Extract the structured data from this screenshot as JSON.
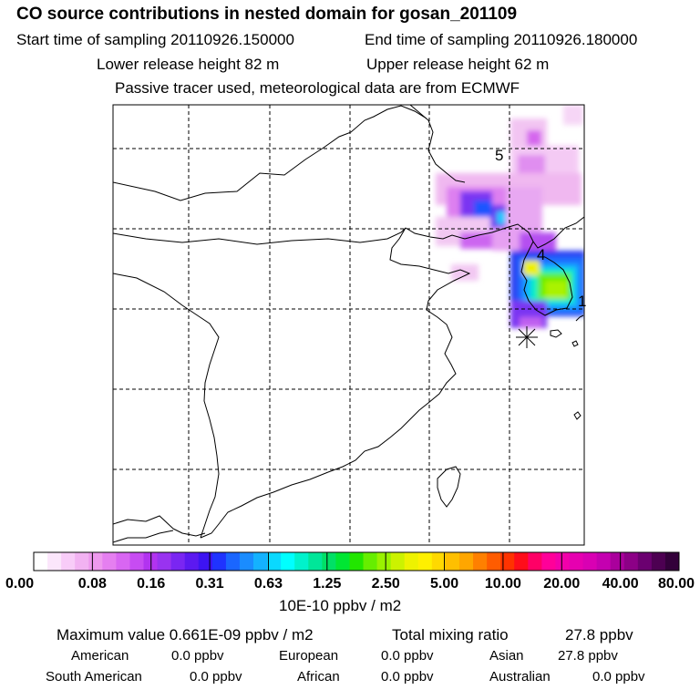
{
  "header": {
    "title": "CO  source contributions in nested domain for gosan_201109",
    "start_time": "Start time of sampling 20110926.150000",
    "end_time": "End time of sampling 20110926.180000",
    "lower_height": "Lower release height   82 m",
    "upper_height": "Upper release height   62 m",
    "tracer_note": "Passive tracer used, meteorological data are from ECMWF"
  },
  "map": {
    "day_labels": [
      "5",
      "4",
      "1"
    ],
    "receptor_symbol": "receptor-star"
  },
  "colorbar": {
    "colors": [
      "#ffffff",
      "#fbe6fb",
      "#f8ccf8",
      "#f2b2f2",
      "#ee99ee",
      "#e57ff0",
      "#d866f2",
      "#c74cf2",
      "#b233f0",
      "#9933f0",
      "#7a26f2",
      "#5c19f0",
      "#3d14f2",
      "#1f33ff",
      "#1a66ff",
      "#1a8cff",
      "#14b2ff",
      "#0ad9ff",
      "#00ffff",
      "#00f2cc",
      "#00e699",
      "#00e066",
      "#00e633",
      "#22e600",
      "#66ee00",
      "#99f200",
      "#ccf200",
      "#eef200",
      "#fff000",
      "#ffd900",
      "#ffbf00",
      "#ffa600",
      "#ff8000",
      "#ff5c00",
      "#ff3300",
      "#ff0d1a",
      "#ff0066",
      "#ff0099",
      "#f200aa",
      "#e600b0",
      "#d900b3",
      "#c400b0",
      "#aa009c",
      "#8c0086",
      "#6b0070",
      "#4d0052",
      "#33003a"
    ],
    "tick_labels": [
      "0.00",
      "0.08",
      "0.16",
      "0.31",
      "0.63",
      "1.25",
      "2.50",
      "5.00",
      "10.00",
      "20.00",
      "40.00",
      "80.00"
    ],
    "unit_label": "10E-10 ppbv / m2"
  },
  "stats": {
    "max_value": "Maximum value  0.661E-09 ppbv / m2",
    "total_mixing": "Total mixing ratio",
    "total_mixing_value": "27.8 ppbv",
    "american_label": "American",
    "american_value": "0.0 ppbv",
    "european_label": "European",
    "european_value": "0.0 ppbv",
    "asian_label": "Asian",
    "asian_value": "27.8 ppbv",
    "south_american_label": "South American",
    "south_american_value": "0.0 ppbv",
    "african_label": "African",
    "african_value": "0.0 ppbv",
    "australian_label": "Australian",
    "australian_value": "0.0 ppbv"
  }
}
